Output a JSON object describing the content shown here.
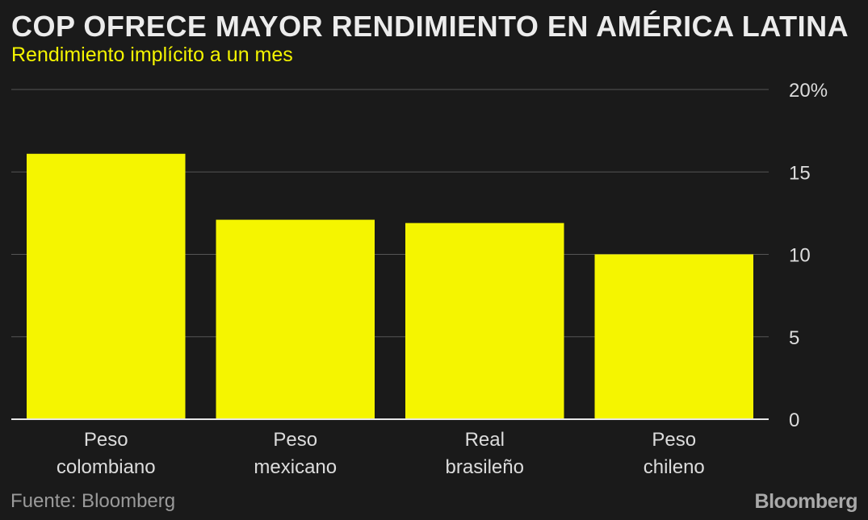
{
  "header": {
    "title": "COP OFRECE MAYOR RENDIMIENTO EN AMÉRICA LATINA",
    "subtitle": "Rendimiento implícito a un mes"
  },
  "footer": {
    "source": "Fuente: Bloomberg",
    "logo": "Bloomberg"
  },
  "colors": {
    "background": "#1a1a1a",
    "bar": "#f5f500",
    "title": "#ececec",
    "subtitle": "#f5f500",
    "axis_text": "#dcdcdc",
    "grid": "#555555"
  },
  "chart_data": {
    "type": "bar",
    "title": "COP OFRECE MAYOR RENDIMIENTO EN AMÉRICA LATINA",
    "subtitle": "Rendimiento implícito a un mes",
    "categories": [
      [
        "Peso",
        "colombiano"
      ],
      [
        "Peso",
        "mexicano"
      ],
      [
        "Real",
        "brasileño"
      ],
      [
        "Peso",
        "chileno"
      ]
    ],
    "values": [
      16.1,
      12.1,
      11.9,
      10.0
    ],
    "ylim": [
      0,
      20
    ],
    "yticks": [
      0,
      5,
      10,
      15,
      20
    ],
    "ytick_labels": [
      "0",
      "5",
      "10",
      "15",
      "20%"
    ],
    "yaxis_side": "right",
    "grid": true,
    "xlabel": "",
    "ylabel": ""
  }
}
